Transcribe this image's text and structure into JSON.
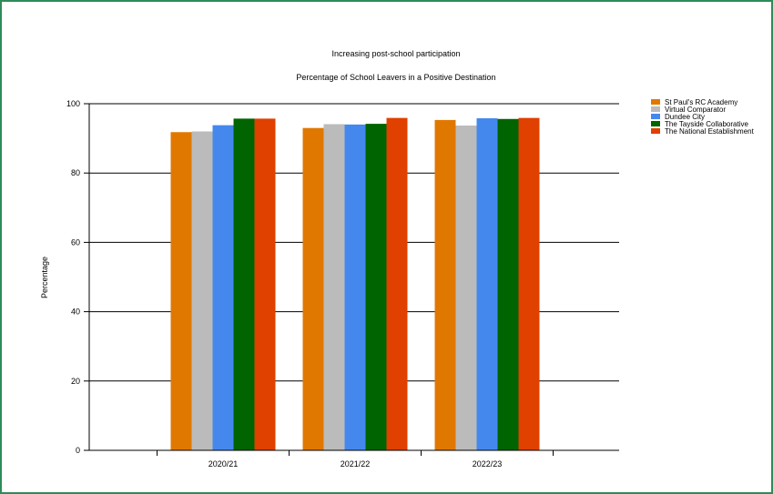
{
  "chart_data": {
    "type": "bar",
    "title": "Increasing post-school participation",
    "subtitle": "Percentage of School Leavers in a Positive Destination",
    "xlabel": "",
    "ylabel": "Percentage",
    "categories": [
      "2020/21",
      "2021/22",
      "2022/23"
    ],
    "ylim": [
      0,
      100
    ],
    "yticks": [
      0,
      20,
      40,
      60,
      80,
      100
    ],
    "grid": true,
    "legend_position": "right",
    "series": [
      {
        "name": "St Paul's RC Academy",
        "color": "#e07800",
        "values": [
          91.8,
          93.0,
          95.3
        ]
      },
      {
        "name": "Virtual Comparator",
        "color": "#bbbbbb",
        "values": [
          92.0,
          94.1,
          93.7
        ]
      },
      {
        "name": "Dundee City",
        "color": "#4488ee",
        "values": [
          93.8,
          94.0,
          95.8
        ]
      },
      {
        "name": "The Tayside Collaborative",
        "color": "#006400",
        "values": [
          95.7,
          94.2,
          95.6
        ]
      },
      {
        "name": "The National Establishment",
        "color": "#e04000",
        "values": [
          95.7,
          95.9,
          95.9
        ]
      }
    ]
  }
}
